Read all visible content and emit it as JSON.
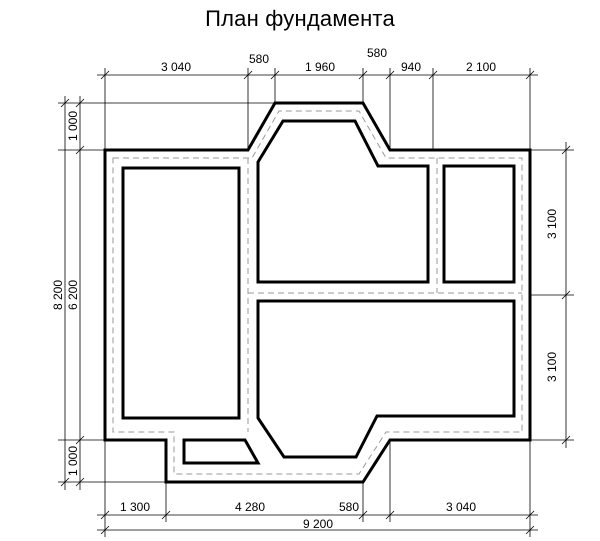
{
  "title": "План фундамента",
  "dimensions": {
    "top": [
      "3 040",
      "580",
      "1 960",
      "580",
      "940",
      "2 100"
    ],
    "bottom": [
      "1 300",
      "4 280",
      "580",
      "3 040"
    ],
    "bottom_total": "9 200",
    "left_outer_total": "8 200",
    "left_inner_total": "6 200",
    "left_top": "1 000",
    "left_bottom": "1 000",
    "right": [
      "3 100",
      "3 100"
    ]
  }
}
